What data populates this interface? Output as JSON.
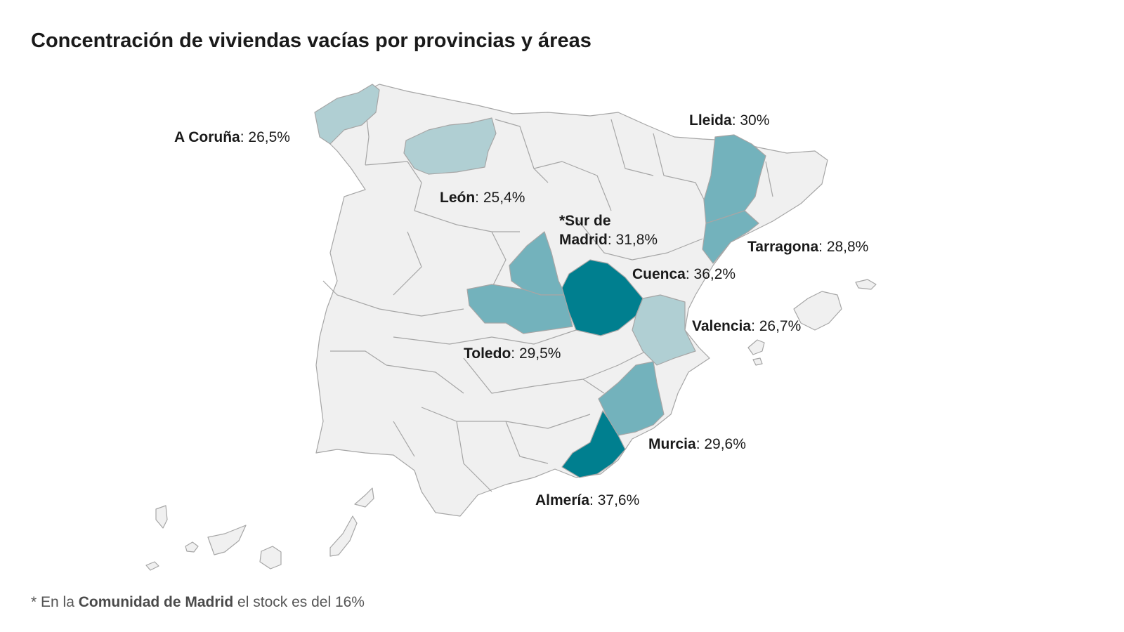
{
  "title": "Concentración de viviendas vacías por provincias y áreas",
  "colors": {
    "background_land": "#f0f0f0",
    "border": "#a6a6a6",
    "tier_low": "#b0cfd3",
    "tier_mid": "#73b2bc",
    "tier_high": "#007f8f"
  },
  "provinces": [
    {
      "name": "A Coruña",
      "value": "26,5%"
    },
    {
      "name": "León",
      "value": "25,4%"
    },
    {
      "name": "Lleida",
      "value": "30%"
    },
    {
      "name": "Tarragona",
      "value": "28,8%"
    },
    {
      "name": "*Sur de",
      "name2": "Madrid",
      "value": "31,8%"
    },
    {
      "name": "Cuenca",
      "value": "36,2%"
    },
    {
      "name": "Valencia",
      "value": "26,7%"
    },
    {
      "name": "Toledo",
      "value": "29,5%"
    },
    {
      "name": "Murcia",
      "value": "29,6%"
    },
    {
      "name": "Almería",
      "value": "37,6%"
    }
  ],
  "footnote": {
    "prefix": "* En la ",
    "bold": "Comunidad de Madrid",
    "suffix": " el stock es del 16%"
  }
}
